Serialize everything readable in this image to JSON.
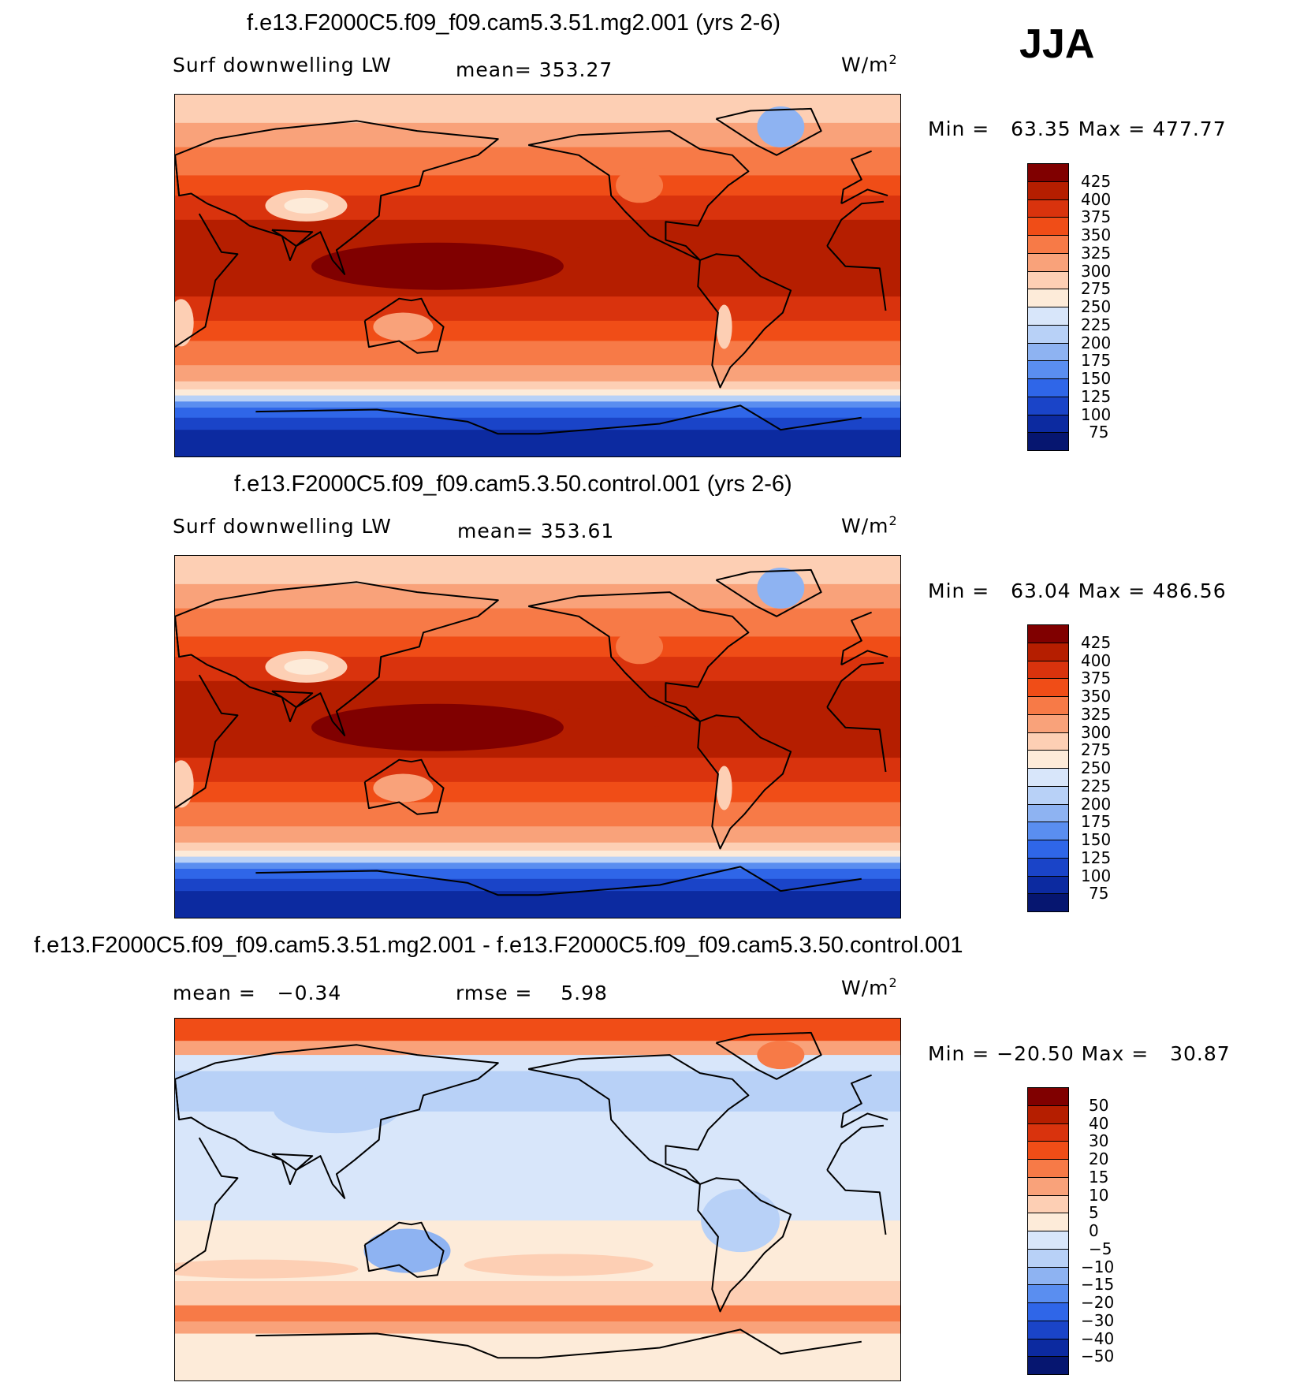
{
  "season": "JJA",
  "panels": [
    {
      "id": "test",
      "title": "f.e13.F2000C5.f09_f09.cam5.3.51.mg2.001 (yrs 2-6)",
      "variable": "Surf downwelling LW",
      "stat1": "mean= 353.27",
      "stat2": "",
      "units": "W/m",
      "units_exp": "2",
      "minmax": "Min =   63.35 Max = 477.77"
    },
    {
      "id": "control",
      "title": "f.e13.F2000C5.f09_f09.cam5.3.50.control.001 (yrs 2-6)",
      "variable": "Surf downwelling LW",
      "stat1": "mean= 353.61",
      "stat2": "",
      "units": "W/m",
      "units_exp": "2",
      "minmax": "Min =   63.04 Max = 486.56"
    },
    {
      "id": "diff",
      "title": "f.e13.F2000C5.f09_f09.cam5.3.51.mg2.001 - f.e13.F2000C5.f09_f09.cam5.3.50.control.001",
      "variable": "",
      "stat1": "mean =   −0.34",
      "stat2": "rmse =    5.98",
      "units": "W/m",
      "units_exp": "2",
      "minmax": "Min = −20.50 Max =   30.87"
    }
  ],
  "chart_data": [
    {
      "type": "heatmap",
      "title": "f.e13.F2000C5.f09_f09.cam5.3.51.mg2.001 (yrs 2-6)",
      "variable": "Surf downwelling LW",
      "mean": 353.27,
      "min": 63.35,
      "max": 477.77,
      "units": "W/m2",
      "colorbar_ticks": [
        "425",
        "400",
        "375",
        "350",
        "325",
        "300",
        "275",
        "250",
        "225",
        "200",
        "175",
        "150",
        "125",
        "100",
        "75"
      ],
      "colorbar_colors": [
        "#800000",
        "#b51e00",
        "#d9330d",
        "#f04d17",
        "#f77a47",
        "#f9a27a",
        "#fdcfb4",
        "#fdebd9",
        "#d8e6fa",
        "#b8d1f7",
        "#8eb3f2",
        "#5a8ef0",
        "#2f66e8",
        "#1a44c8",
        "#0c2aa0",
        "#061670"
      ]
    },
    {
      "type": "heatmap",
      "title": "f.e13.F2000C5.f09_f09.cam5.3.50.control.001 (yrs 2-6)",
      "variable": "Surf downwelling LW",
      "mean": 353.61,
      "min": 63.04,
      "max": 486.56,
      "units": "W/m2",
      "colorbar_ticks": [
        "425",
        "400",
        "375",
        "350",
        "325",
        "300",
        "275",
        "250",
        "225",
        "200",
        "175",
        "150",
        "125",
        "100",
        "75"
      ],
      "colorbar_colors": [
        "#800000",
        "#b51e00",
        "#d9330d",
        "#f04d17",
        "#f77a47",
        "#f9a27a",
        "#fdcfb4",
        "#fdebd9",
        "#d8e6fa",
        "#b8d1f7",
        "#8eb3f2",
        "#5a8ef0",
        "#2f66e8",
        "#1a44c8",
        "#0c2aa0",
        "#061670"
      ]
    },
    {
      "type": "heatmap",
      "title": "f.e13.F2000C5.f09_f09.cam5.3.51.mg2.001 - f.e13.F2000C5.f09_f09.cam5.3.50.control.001",
      "mean": -0.34,
      "rmse": 5.98,
      "min": -20.5,
      "max": 30.87,
      "units": "W/m2",
      "colorbar_ticks": [
        "50",
        "40",
        "30",
        "20",
        "15",
        "10",
        "5",
        "0",
        "−5",
        "−10",
        "−15",
        "−20",
        "−30",
        "−40",
        "−50"
      ],
      "colorbar_colors": [
        "#800000",
        "#b51e00",
        "#d9330d",
        "#f04d17",
        "#f77a47",
        "#f9a27a",
        "#fdcfb4",
        "#fdebd9",
        "#d8e6fa",
        "#b8d1f7",
        "#8eb3f2",
        "#5a8ef0",
        "#2f66e8",
        "#1a44c8",
        "#0c2aa0",
        "#061670"
      ]
    }
  ]
}
